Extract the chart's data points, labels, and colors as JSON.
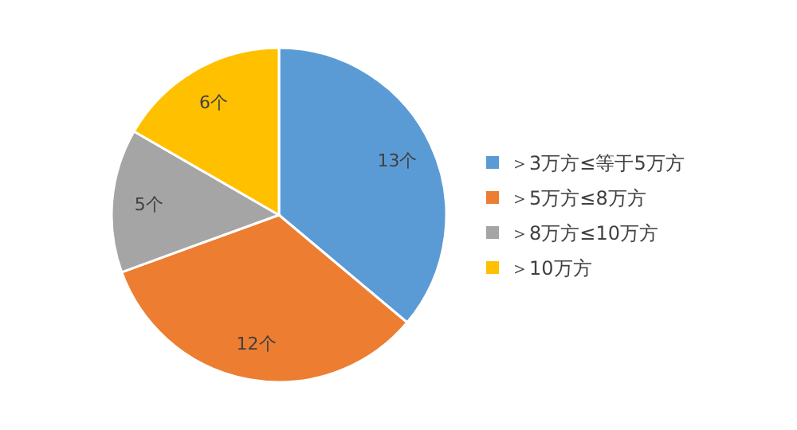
{
  "chart_data": {
    "type": "pie",
    "categories": [
      "＞3万方≤等于5万方",
      "＞5万方≤8万方",
      "＞8万方≤10万方",
      "＞10万方"
    ],
    "values": [
      13,
      12,
      5,
      6
    ],
    "colors": [
      "#5b9bd5",
      "#ed7d31",
      "#a5a5a5",
      "#ffc000"
    ],
    "value_labels": [
      "13个",
      "12个",
      "5个",
      "6个"
    ],
    "legend": "right"
  }
}
